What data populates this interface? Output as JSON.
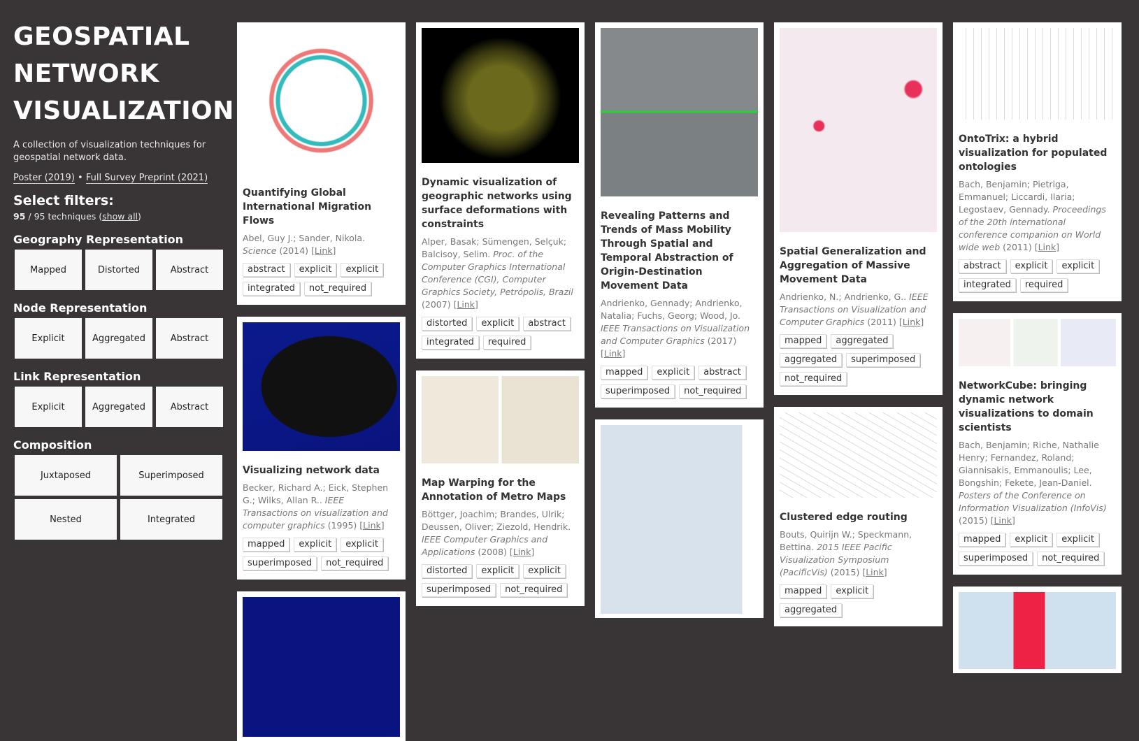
{
  "sidebar": {
    "title_lines": [
      "GEOSPATIAL",
      "NETWORK",
      "VISUALIZATION"
    ],
    "description": "A collection of visualization techniques for geospatial network data.",
    "links": [
      "Poster (2019)",
      "Full Survey Preprint (2021)"
    ],
    "link_separator": "•",
    "filters_heading": "Select filters:",
    "count": {
      "shown": "95",
      "text": " / 95 techniques (",
      "show_all": "show all",
      "end": ")"
    },
    "groups": [
      {
        "title": "Geography Representation",
        "options": [
          "Mapped",
          "Distorted",
          "Abstract"
        ]
      },
      {
        "title": "Node Representation",
        "options": [
          "Explicit",
          "Aggregated",
          "Abstract"
        ]
      },
      {
        "title": "Link Representation",
        "options": [
          "Explicit",
          "Aggregated",
          "Abstract"
        ]
      },
      {
        "title": "Composition",
        "options": [
          "Juxtaposed",
          "Superimposed",
          "Nested",
          "Integrated"
        ]
      }
    ]
  },
  "columns": [
    {
      "cards": [
        {
          "title": "Quantifying Global International Migration Flows",
          "authors": "Abel, Guy J.; Sander, Nikola.",
          "venue": "Science",
          "year": "(2014)",
          "link": "[Link]",
          "tags": [
            "abstract",
            "explicit",
            "explicit",
            "integrated",
            "not_required"
          ]
        },
        {
          "title": "Visualizing network data",
          "authors": "Becker, Richard A.; Eick, Stephen G.; Wilks, Allan R..",
          "venue": "IEEE Transactions on visualization and computer graphics",
          "year": "(1995)",
          "link": "[Link]",
          "tags": [
            "mapped",
            "explicit",
            "explicit",
            "superimposed",
            "not_required"
          ]
        }
      ]
    },
    {
      "cards": [
        {
          "title": "Dynamic visualization of geographic networks using surface deformations with constraints",
          "authors": "Alper, Basak; Sümengen, Selçuk; Balcisoy, Selim.",
          "venue": "Proc. of the Computer Graphics International Conference (CGI), Computer Graphics Society, Petrópolis, Brazil",
          "year": "(2007)",
          "link": "[Link]",
          "tags": [
            "distorted",
            "explicit",
            "abstract",
            "integrated",
            "required"
          ]
        },
        {
          "title": "Map Warping for the Annotation of Metro Maps",
          "authors": "Böttger, Joachim; Brandes, Ulrik; Deussen, Oliver; Ziezold, Hendrik.",
          "venue": "IEEE Computer Graphics and Applications",
          "year": "(2008)",
          "link": "[Link]",
          "tags": [
            "distorted",
            "explicit",
            "explicit",
            "superimposed",
            "not_required"
          ]
        }
      ]
    },
    {
      "cards": [
        {
          "title": "Revealing Patterns and Trends of Mass Mobility Through Spatial and Temporal Abstraction of Origin-Destination Movement Data",
          "authors": "Andrienko, Gennady; Andrienko, Natalia; Fuchs, Georg; Wood, Jo.",
          "venue": "IEEE Transactions on Visualization and Computer Graphics",
          "year": "(2017)",
          "link": "[Link]",
          "tags": [
            "mapped",
            "explicit",
            "abstract",
            "superimposed",
            "not_required"
          ]
        }
      ]
    },
    {
      "cards": [
        {
          "title": "Spatial Generalization and Aggregation of Massive Movement Data",
          "authors": "Andrienko, N.; Andrienko, G..",
          "venue": "IEEE Transactions on Visualization and Computer Graphics",
          "year": "(2011)",
          "link": "[Link]",
          "tags": [
            "mapped",
            "aggregated",
            "aggregated",
            "superimposed",
            "not_required"
          ]
        },
        {
          "title": "Clustered edge routing",
          "authors": "Bouts, Quirijn W.; Speckmann, Bettina.",
          "venue": "2015 IEEE Pacific Visualization Symposium (PacificVis)",
          "year": "(2015)",
          "link": "[Link]",
          "tags": [
            "mapped",
            "explicit",
            "aggregated"
          ]
        }
      ]
    },
    {
      "cards": [
        {
          "title": "OntoTrix: a hybrid visualization for populated ontologies",
          "authors": "Bach, Benjamin; Pietriga, Emmanuel; Liccardi, Ilaria; Legostaev, Gennady.",
          "venue": "Proceedings of the 20th international conference companion on World wide web",
          "year": "(2011)",
          "link": "[Link]",
          "tags": [
            "abstract",
            "explicit",
            "explicit",
            "integrated",
            "required"
          ]
        },
        {
          "title": "NetworkCube: bringing dynamic network visualizations to domain scientists",
          "authors": "Bach, Benjamin; Riche, Nathalie Henry; Fernandez, Roland; Giannisakis, Emmanoulis; Lee, Bongshin; Fekete, Jean-Daniel.",
          "venue": "Posters of the Conference on Information Visualization (InfoVis)",
          "year": "(2015)",
          "link": "[Link]",
          "tags": [
            "mapped",
            "explicit",
            "explicit",
            "superimposed",
            "not_required"
          ]
        }
      ]
    }
  ]
}
